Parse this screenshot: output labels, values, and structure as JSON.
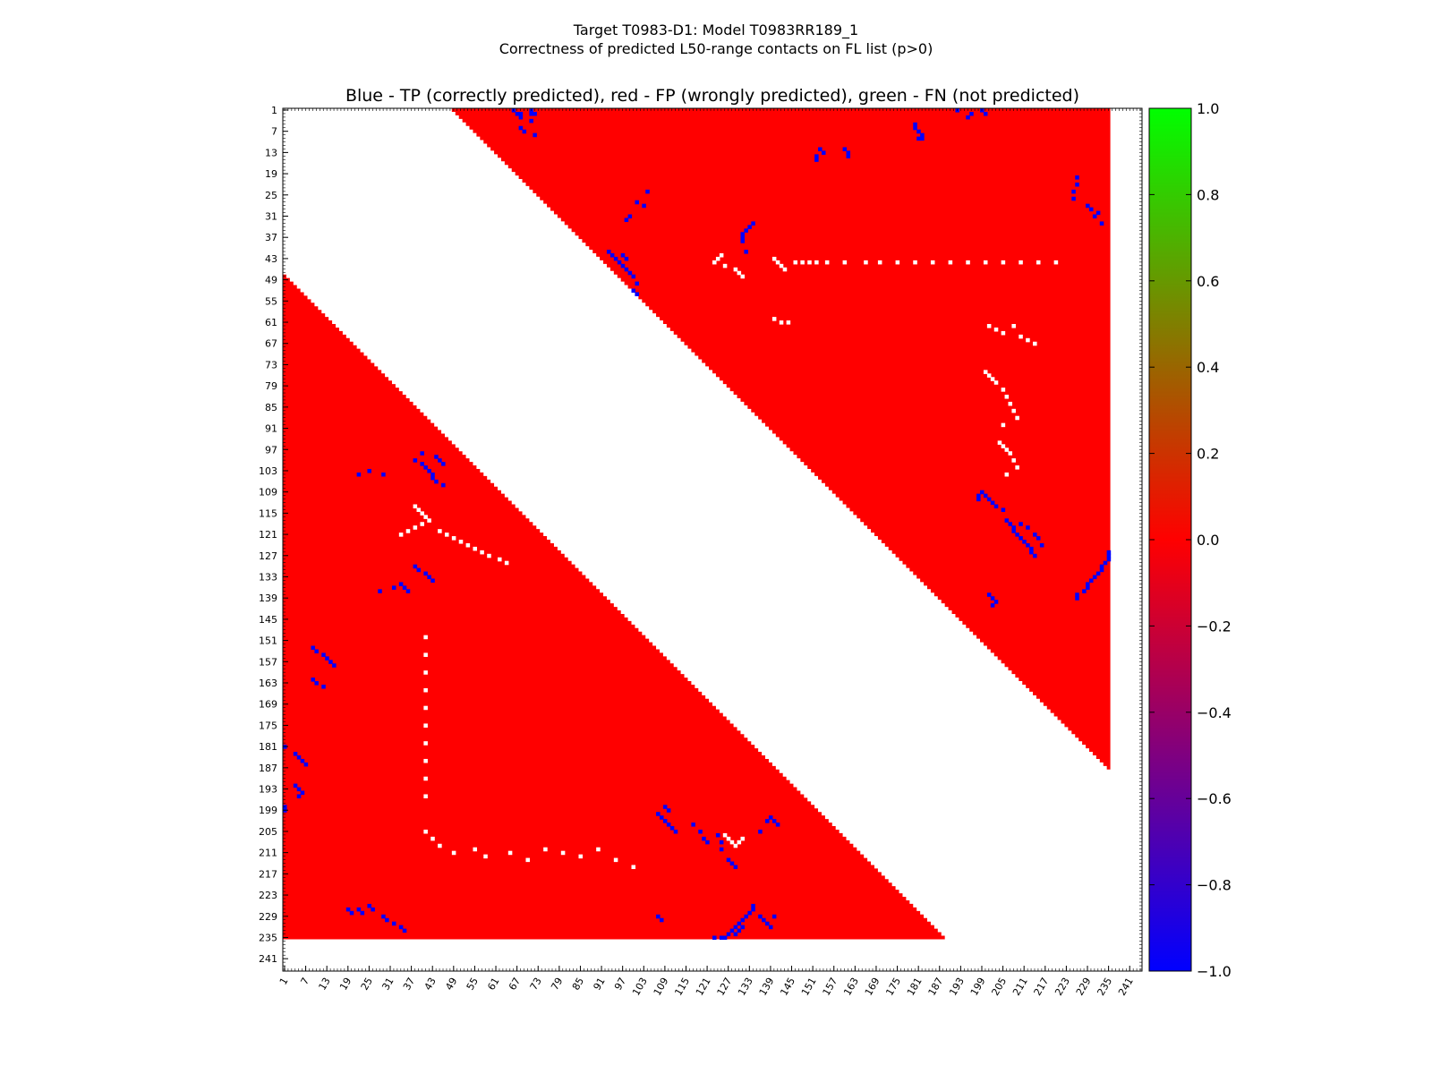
{
  "chart_data": {
    "type": "heatmap",
    "suptitle_line1": "Target T0983-D1: Model T0983RR189_1",
    "suptitle_line2": "Correctness of predicted L50-range contacts on FL list (p>0)",
    "title": "Blue - TP (correctly predicted), red - FP (wrongly predicted), green - FN (not predicted)",
    "xlabel": "",
    "ylabel": "",
    "sequence_length": 235,
    "axis_range": [
      1,
      244
    ],
    "separation_window_upper": [
      49,
      183
    ],
    "separation_window_lower": [
      48,
      183
    ],
    "x_ticks": [
      "1",
      "7",
      "13",
      "19",
      "25",
      "31",
      "37",
      "43",
      "49",
      "55",
      "61",
      "67",
      "73",
      "79",
      "85",
      "91",
      "97",
      "103",
      "109",
      "115",
      "121",
      "127",
      "133",
      "139",
      "145",
      "151",
      "157",
      "163",
      "169",
      "175",
      "181",
      "187",
      "193",
      "199",
      "205",
      "211",
      "217",
      "223",
      "229",
      "235",
      "241"
    ],
    "y_ticks": [
      "1",
      "7",
      "13",
      "19",
      "25",
      "31",
      "37",
      "43",
      "49",
      "55",
      "61",
      "67",
      "73",
      "79",
      "85",
      "91",
      "97",
      "103",
      "109",
      "115",
      "121",
      "127",
      "133",
      "139",
      "145",
      "151",
      "157",
      "163",
      "169",
      "175",
      "181",
      "187",
      "193",
      "199",
      "205",
      "211",
      "217",
      "223",
      "229",
      "235",
      "241"
    ],
    "colorbar": {
      "min": -1.0,
      "max": 1.0,
      "ticks": [
        "1.0",
        "0.8",
        "0.6",
        "0.4",
        "0.2",
        "0.0",
        "−0.2",
        "−0.4",
        "−0.6",
        "−0.8",
        "−1.0"
      ],
      "colormap": [
        "#0000ff",
        "#ff0000",
        "#00ff00"
      ]
    },
    "categories": [
      {
        "label": "TP (correctly predicted)",
        "value": -1,
        "color": "#0000ff"
      },
      {
        "label": "FP (wrongly predicted)",
        "value": 0,
        "color": "#ff0000"
      },
      {
        "label": "FN (not predicted)",
        "value": 1,
        "color": "#00ff00"
      }
    ],
    "background_value": 0,
    "background_color": "#ff0000",
    "empty_color": "#ffffff",
    "true_positive_contacts": [
      [
        1,
        66
      ],
      [
        2,
        67
      ],
      [
        2,
        68
      ],
      [
        3,
        68
      ],
      [
        1,
        71
      ],
      [
        2,
        71
      ],
      [
        4,
        71
      ],
      [
        6,
        68
      ],
      [
        7,
        69
      ],
      [
        8,
        72
      ],
      [
        2,
        72
      ],
      [
        5,
        180
      ],
      [
        6,
        180
      ],
      [
        7,
        181
      ],
      [
        8,
        182
      ],
      [
        9,
        181
      ],
      [
        9,
        182
      ],
      [
        1,
        192
      ],
      [
        2,
        196
      ],
      [
        3,
        195
      ],
      [
        1,
        199
      ],
      [
        2,
        200
      ],
      [
        12,
        153
      ],
      [
        13,
        154
      ],
      [
        14,
        152
      ],
      [
        15,
        152
      ],
      [
        12,
        160
      ],
      [
        13,
        161
      ],
      [
        14,
        161
      ],
      [
        20,
        226
      ],
      [
        22,
        226
      ],
      [
        24,
        225
      ],
      [
        26,
        225
      ],
      [
        28,
        229
      ],
      [
        29,
        230
      ],
      [
        30,
        232
      ],
      [
        31,
        231
      ],
      [
        33,
        233
      ],
      [
        24,
        104
      ],
      [
        27,
        101
      ],
      [
        28,
        103
      ],
      [
        31,
        99
      ],
      [
        32,
        98
      ],
      [
        33,
        134
      ],
      [
        34,
        133
      ],
      [
        35,
        132
      ],
      [
        36,
        131
      ],
      [
        37,
        131
      ],
      [
        38,
        131
      ],
      [
        41,
        132
      ],
      [
        41,
        93
      ],
      [
        42,
        94
      ],
      [
        43,
        95
      ],
      [
        44,
        96
      ],
      [
        45,
        97
      ],
      [
        46,
        98
      ],
      [
        47,
        99
      ],
      [
        48,
        100
      ],
      [
        50,
        101
      ],
      [
        42,
        97
      ],
      [
        43,
        98
      ],
      [
        52,
        100
      ],
      [
        53,
        101
      ],
      [
        100,
        38
      ],
      [
        101,
        40
      ],
      [
        102,
        41
      ],
      [
        103,
        42
      ],
      [
        104,
        43
      ],
      [
        105,
        43
      ],
      [
        99,
        44
      ],
      [
        98,
        40
      ],
      [
        100,
        45
      ],
      [
        101,
        46
      ],
      [
        103,
        25
      ],
      [
        104,
        22
      ],
      [
        104,
        29
      ],
      [
        106,
        44
      ],
      [
        107,
        46
      ],
      [
        109,
        199
      ],
      [
        110,
        200
      ],
      [
        111,
        201
      ],
      [
        112,
        202
      ],
      [
        113,
        203
      ],
      [
        114,
        205
      ],
      [
        110,
        198
      ],
      [
        111,
        198
      ],
      [
        117,
        206
      ],
      [
        118,
        207
      ],
      [
        119,
        208
      ],
      [
        120,
        208
      ],
      [
        121,
        209
      ],
      [
        122,
        210
      ],
      [
        123,
        211
      ],
      [
        124,
        212
      ],
      [
        125,
        213
      ],
      [
        126,
        213
      ],
      [
        127,
        214
      ],
      [
        118,
        210
      ],
      [
        119,
        212
      ],
      [
        121,
        214
      ],
      [
        122,
        215
      ],
      [
        124,
        216
      ],
      [
        126,
        235
      ],
      [
        127,
        235
      ],
      [
        128,
        235
      ],
      [
        129,
        234
      ],
      [
        130,
        233
      ],
      [
        131,
        233
      ],
      [
        132,
        232
      ],
      [
        133,
        231
      ],
      [
        134,
        230
      ],
      [
        135,
        229
      ],
      [
        136,
        229
      ],
      [
        137,
        228
      ],
      [
        138,
        226
      ],
      [
        139,
        226
      ],
      [
        138,
        201
      ],
      [
        139,
        202
      ],
      [
        140,
        203
      ],
      [
        141,
        202
      ],
      [
        130,
        38
      ],
      [
        131,
        39
      ],
      [
        132,
        41
      ],
      [
        133,
        42
      ],
      [
        134,
        43
      ],
      [
        135,
        34
      ],
      [
        136,
        35
      ],
      [
        137,
        36
      ],
      [
        137,
        28
      ],
      [
        136,
        32
      ],
      [
        153,
        9
      ],
      [
        154,
        10
      ],
      [
        155,
        12
      ],
      [
        156,
        13
      ],
      [
        157,
        14
      ],
      [
        158,
        15
      ],
      [
        162,
        9
      ],
      [
        163,
        10
      ],
      [
        164,
        12
      ],
      [
        181,
        1
      ],
      [
        183,
        4
      ],
      [
        184,
        5
      ],
      [
        185,
        6
      ],
      [
        186,
        7
      ],
      [
        192,
        4
      ],
      [
        193,
        5
      ],
      [
        194,
        6
      ],
      [
        195,
        5
      ],
      [
        198,
        1
      ],
      [
        199,
        1
      ],
      [
        200,
        107
      ],
      [
        201,
        108
      ],
      [
        202,
        109
      ],
      [
        203,
        110
      ],
      [
        204,
        111
      ],
      [
        205,
        112
      ],
      [
        199,
        110
      ],
      [
        198,
        109
      ],
      [
        203,
        117
      ],
      [
        205,
        119
      ],
      [
        207,
        120
      ],
      [
        208,
        121
      ],
      [
        206,
        124
      ],
      [
        208,
        125
      ],
      [
        210,
        125
      ],
      [
        213,
        127
      ],
      [
        214,
        128
      ],
      [
        215,
        129
      ],
      [
        201,
        139
      ],
      [
        202,
        140
      ],
      [
        203,
        141
      ],
      [
        202,
        138
      ],
      [
        205,
        136
      ],
      [
        227,
        19
      ],
      [
        228,
        20
      ],
      [
        227,
        22
      ],
      [
        228,
        23
      ],
      [
        226,
        25
      ],
      [
        227,
        26
      ],
      [
        229,
        29
      ],
      [
        230,
        30
      ],
      [
        231,
        32
      ],
      [
        232,
        34
      ],
      [
        233,
        35
      ],
      [
        226,
        134
      ],
      [
        227,
        134
      ],
      [
        228,
        133
      ],
      [
        229,
        132
      ],
      [
        230,
        131
      ],
      [
        231,
        130
      ],
      [
        232,
        129
      ],
      [
        233,
        128
      ],
      [
        234,
        127
      ],
      [
        235,
        126
      ],
      [
        235,
        125
      ],
      [
        235,
        123
      ],
      [
        229,
        136
      ],
      [
        230,
        137
      ],
      [
        231,
        138
      ],
      [
        232,
        139
      ],
      [
        229,
        140
      ],
      [
        229,
        107
      ],
      [
        230,
        108
      ],
      [
        232,
        131
      ],
      [
        233,
        130
      ],
      [
        234,
        129
      ]
    ],
    "unpredicted_regions": [
      [
        42,
        125
      ],
      [
        43,
        124
      ],
      [
        44,
        123
      ],
      [
        45,
        126
      ],
      [
        46,
        129
      ],
      [
        47,
        130
      ],
      [
        48,
        131
      ],
      [
        43,
        140
      ],
      [
        44,
        141
      ],
      [
        45,
        142
      ],
      [
        46,
        143
      ],
      [
        44,
        146
      ],
      [
        44,
        148
      ],
      [
        44,
        150
      ],
      [
        44,
        152
      ],
      [
        44,
        155
      ],
      [
        44,
        160
      ],
      [
        44,
        166
      ],
      [
        44,
        170
      ],
      [
        44,
        175
      ],
      [
        44,
        180
      ],
      [
        44,
        185
      ],
      [
        44,
        190
      ],
      [
        44,
        195
      ],
      [
        44,
        200
      ],
      [
        44,
        205
      ],
      [
        44,
        210
      ],
      [
        44,
        215
      ],
      [
        44,
        220
      ],
      [
        60,
        140
      ],
      [
        61,
        142
      ],
      [
        61,
        144
      ],
      [
        62,
        201
      ],
      [
        63,
        203
      ],
      [
        64,
        205
      ],
      [
        62,
        208
      ],
      [
        65,
        210
      ],
      [
        66,
        212
      ],
      [
        67,
        214
      ],
      [
        75,
        200
      ],
      [
        76,
        201
      ],
      [
        77,
        202
      ],
      [
        78,
        203
      ],
      [
        80,
        205
      ],
      [
        82,
        206
      ],
      [
        84,
        207
      ],
      [
        86,
        208
      ],
      [
        88,
        209
      ],
      [
        90,
        205
      ],
      [
        95,
        204
      ],
      [
        96,
        205
      ],
      [
        97,
        206
      ],
      [
        98,
        207
      ],
      [
        100,
        208
      ],
      [
        102,
        209
      ],
      [
        104,
        206
      ],
      [
        113,
        38
      ],
      [
        114,
        39
      ],
      [
        115,
        40
      ],
      [
        116,
        41
      ],
      [
        117,
        42
      ],
      [
        118,
        40
      ],
      [
        119,
        38
      ],
      [
        120,
        36
      ],
      [
        121,
        34
      ],
      [
        120,
        45
      ],
      [
        121,
        47
      ],
      [
        122,
        49
      ],
      [
        123,
        51
      ],
      [
        124,
        53
      ],
      [
        125,
        55
      ],
      [
        126,
        57
      ],
      [
        127,
        59
      ],
      [
        128,
        62
      ],
      [
        129,
        64
      ],
      [
        150,
        41
      ],
      [
        155,
        41
      ],
      [
        160,
        41
      ],
      [
        165,
        41
      ],
      [
        170,
        41
      ],
      [
        175,
        41
      ],
      [
        180,
        41
      ],
      [
        185,
        41
      ],
      [
        190,
        41
      ],
      [
        195,
        41
      ],
      [
        205,
        41
      ],
      [
        207,
        43
      ],
      [
        209,
        45
      ],
      [
        211,
        49
      ],
      [
        210,
        55
      ],
      [
        212,
        58
      ],
      [
        211,
        65
      ],
      [
        213,
        70
      ],
      [
        210,
        75
      ],
      [
        211,
        80
      ],
      [
        212,
        85
      ],
      [
        210,
        90
      ],
      [
        213,
        95
      ],
      [
        215,
        100
      ],
      [
        206,
        126
      ],
      [
        207,
        127
      ],
      [
        208,
        128
      ],
      [
        209,
        129
      ],
      [
        208,
        130
      ],
      [
        207,
        131
      ]
    ],
    "grid": false,
    "legend": "colorbar-right"
  }
}
